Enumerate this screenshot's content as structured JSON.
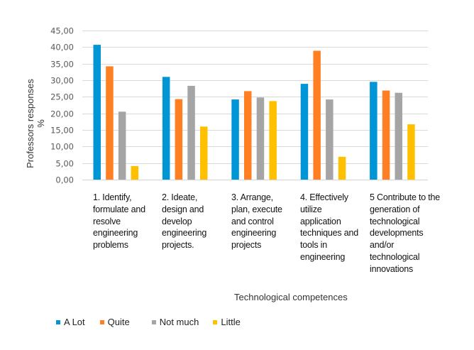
{
  "chart_data": {
    "type": "bar",
    "title": "",
    "xlabel": "Technological competences",
    "ylabel": [
      "Professors responses",
      "%"
    ],
    "ylim": [
      0,
      45
    ],
    "yticks": [
      "0,00",
      "5,00",
      "10,00",
      "15,00",
      "20,00",
      "25,00",
      "30,00",
      "35,00",
      "40,00",
      "45,00"
    ],
    "ytick_values": [
      0,
      5,
      10,
      15,
      20,
      25,
      30,
      35,
      40,
      45
    ],
    "grid": true,
    "legend_position": "bottom-left",
    "categories": [
      [
        "1. Identify,",
        "formulate and",
        "resolve",
        "engineering",
        "problems"
      ],
      [
        "2. Ideate,",
        "design and",
        "develop",
        "engineering",
        "projects."
      ],
      [
        "3. Arrange,",
        "plan, execute",
        "and control",
        "engineering",
        "projects"
      ],
      [
        "4. Effectively",
        "utilize",
        "application",
        "techniques and",
        "tools in",
        "engineering"
      ],
      [
        "5 Contribute to the",
        "generation of",
        "technological",
        "developments",
        "and/or",
        "technological",
        "innovations"
      ]
    ],
    "series": [
      {
        "name": "A Lot",
        "color": "#0096D6",
        "values": [
          40.7,
          31.0,
          24.2,
          28.9,
          29.5
        ]
      },
      {
        "name": "Quite",
        "color": "#FF7F22",
        "values": [
          34.2,
          24.3,
          26.7,
          38.9,
          26.9
        ]
      },
      {
        "name": "Not much",
        "color": "#A5A5A5",
        "values": [
          20.5,
          28.3,
          24.8,
          24.2,
          26.2
        ]
      },
      {
        "name": "Little",
        "color": "#FFC000",
        "values": [
          4.1,
          16.0,
          23.7,
          6.9,
          16.7
        ]
      }
    ]
  },
  "colors": {
    "gridline": "#D9D9D9",
    "axis_text": "#595959"
  }
}
